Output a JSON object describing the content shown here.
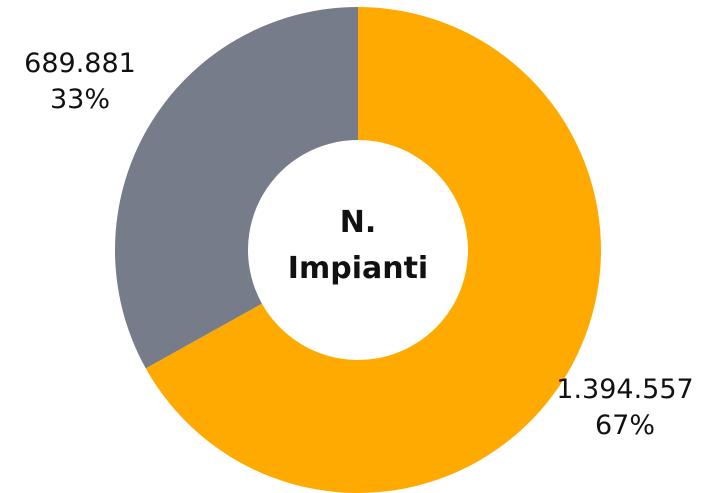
{
  "chart_data": {
    "type": "donut",
    "title": "N. Impianti",
    "values": [
      1394557,
      689881
    ],
    "value_labels": [
      "1.394.557",
      "689.881"
    ],
    "percent_labels": [
      "67%",
      "33%"
    ],
    "colors": [
      "#ffaa00",
      "#767c89"
    ]
  }
}
